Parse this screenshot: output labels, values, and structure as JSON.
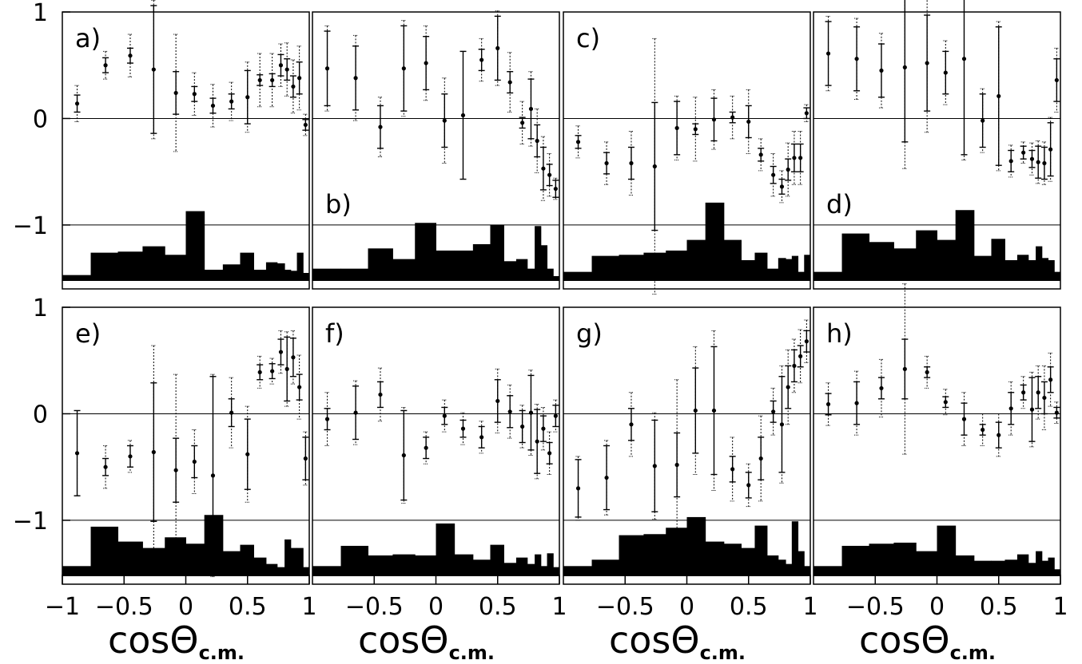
{
  "chart_data": [
    {
      "type": "errorbar",
      "label": "a)",
      "label_position": "upper left",
      "xlim": [
        -1,
        1
      ],
      "ylim": [
        -1.6,
        1.0
      ],
      "yticks": [
        1,
        0,
        {
          "value": -1,
          "label": "−1"
        }
      ],
      "hlines": [
        0,
        -1
      ],
      "x": [
        -0.88,
        -0.65,
        -0.45,
        -0.26,
        -0.08,
        0.07,
        0.22,
        0.37,
        0.5,
        0.6,
        0.7,
        0.77,
        0.82,
        0.87,
        0.92,
        0.97
      ],
      "values": [
        0.14,
        0.5,
        0.59,
        0.46,
        0.24,
        0.23,
        0.12,
        0.16,
        0.2,
        0.36,
        0.36,
        0.5,
        0.46,
        0.3,
        0.38,
        -0.06
      ],
      "stat_errors": [
        0.08,
        0.07,
        0.07,
        0.6,
        0.2,
        0.07,
        0.07,
        0.07,
        0.25,
        0.05,
        0.06,
        0.1,
        0.1,
        0.1,
        0.15,
        0.05
      ],
      "sys_errors": [
        0.17,
        0.13,
        0.2,
        0.65,
        0.55,
        0.2,
        0.2,
        0.18,
        0.33,
        0.25,
        0.25,
        0.2,
        0.25,
        0.25,
        0.3,
        0.1
      ],
      "bins": [
        -1,
        -0.77,
        -0.55,
        -0.35,
        -0.17,
        0,
        0.15,
        0.3,
        0.44,
        0.55,
        0.65,
        0.74,
        0.8,
        0.85,
        0.9,
        0.95,
        1
      ],
      "hist": [
        -1.47,
        -1.26,
        -1.25,
        -1.2,
        -1.28,
        -0.87,
        -1.42,
        -1.37,
        -1.26,
        -1.42,
        -1.35,
        -1.36,
        -1.42,
        -1.43,
        -1.26,
        -1.45
      ]
    },
    {
      "type": "errorbar",
      "label": "b)",
      "label_position": "lower left",
      "xlim": [
        -1,
        1
      ],
      "ylim": [
        -1.6,
        1.0
      ],
      "hlines": [
        0,
        -1
      ],
      "x": [
        -0.88,
        -0.65,
        -0.45,
        -0.26,
        -0.08,
        0.07,
        0.22,
        0.37,
        0.5,
        0.6,
        0.7,
        0.77,
        0.82,
        0.87,
        0.92,
        0.97
      ],
      "values": [
        0.47,
        0.38,
        -0.08,
        0.47,
        0.52,
        -0.02,
        0.03,
        0.55,
        0.66,
        0.34,
        -0.04,
        0.09,
        -0.21,
        -0.47,
        -0.53,
        -0.66
      ],
      "stat_errors": [
        0.35,
        0.3,
        0.2,
        0.4,
        0.25,
        0.25,
        0.6,
        0.1,
        0.3,
        0.1,
        0.05,
        0.28,
        0.15,
        0.2,
        0.1,
        0.08
      ],
      "sys_errors": [
        0.4,
        0.4,
        0.28,
        0.45,
        0.35,
        0.4,
        0.6,
        0.2,
        0.35,
        0.28,
        0.2,
        0.35,
        0.3,
        0.3,
        0.2,
        0.1
      ],
      "bins": [
        -1,
        -0.77,
        -0.55,
        -0.35,
        -0.17,
        0,
        0.15,
        0.3,
        0.44,
        0.55,
        0.65,
        0.74,
        0.8,
        0.85,
        0.9,
        0.95,
        1
      ],
      "hist": [
        -1.41,
        -1.41,
        -1.22,
        -1.32,
        -0.98,
        -1.24,
        -1.24,
        -1.18,
        -1.0,
        -1.34,
        -1.32,
        -1.41,
        -1.01,
        -1.19,
        -1.41,
        -1.48
      ]
    },
    {
      "type": "errorbar",
      "label": "c)",
      "label_position": "upper left",
      "xlim": [
        -1,
        1
      ],
      "ylim": [
        -1.6,
        1.0
      ],
      "hlines": [
        0,
        -1
      ],
      "x": [
        -0.88,
        -0.65,
        -0.45,
        -0.26,
        -0.08,
        0.07,
        0.22,
        0.37,
        0.5,
        0.6,
        0.7,
        0.77,
        0.82,
        0.87,
        0.92,
        0.97
      ],
      "values": [
        -0.22,
        -0.42,
        -0.42,
        -0.45,
        -0.09,
        -0.1,
        -0.01,
        0.01,
        -0.03,
        -0.34,
        -0.53,
        -0.64,
        -0.48,
        -0.37,
        -0.37,
        0.05
      ],
      "stat_errors": [
        0.06,
        0.1,
        0.15,
        0.6,
        0.25,
        0.05,
        0.2,
        0.05,
        0.15,
        0.06,
        0.08,
        0.07,
        0.1,
        0.13,
        0.13,
        0.05
      ],
      "sys_errors": [
        0.15,
        0.2,
        0.3,
        1.2,
        0.3,
        0.3,
        0.28,
        0.2,
        0.3,
        0.15,
        0.2,
        0.15,
        0.25,
        0.25,
        0.25,
        0.08
      ],
      "bins": [
        -1,
        -0.77,
        -0.55,
        -0.35,
        -0.17,
        0,
        0.15,
        0.3,
        0.44,
        0.55,
        0.65,
        0.74,
        0.8,
        0.85,
        0.9,
        0.95,
        1
      ],
      "hist": [
        -1.44,
        -1.29,
        -1.28,
        -1.26,
        -1.24,
        -1.14,
        -0.79,
        -1.14,
        -1.33,
        -1.26,
        -1.41,
        -1.31,
        -1.32,
        -1.29,
        -1.44,
        -1.28
      ]
    },
    {
      "type": "errorbar",
      "label": "d)",
      "label_position": "lower left",
      "xlim": [
        -1,
        1
      ],
      "ylim": [
        -1.6,
        1.0
      ],
      "hlines": [
        0,
        -1
      ],
      "x": [
        -0.88,
        -0.65,
        -0.45,
        -0.26,
        -0.08,
        0.07,
        0.22,
        0.37,
        0.5,
        0.6,
        0.7,
        0.77,
        0.82,
        0.87,
        0.92,
        0.97
      ],
      "values": [
        0.61,
        0.56,
        0.45,
        0.48,
        0.52,
        0.43,
        0.56,
        -0.02,
        0.21,
        -0.4,
        -0.32,
        -0.38,
        -0.41,
        -0.42,
        -0.29,
        0.36
      ],
      "stat_errors": [
        0.3,
        0.3,
        0.25,
        0.7,
        0.45,
        0.2,
        0.9,
        0.25,
        0.65,
        0.1,
        0.06,
        0.08,
        0.15,
        0.15,
        0.25,
        0.2
      ],
      "sys_errors": [
        0.35,
        0.38,
        0.35,
        0.95,
        0.65,
        0.3,
        0.95,
        0.3,
        0.7,
        0.15,
        0.1,
        0.15,
        0.2,
        0.2,
        0.3,
        0.3
      ],
      "bins": [
        -1,
        -0.77,
        -0.55,
        -0.35,
        -0.17,
        0,
        0.15,
        0.3,
        0.44,
        0.55,
        0.65,
        0.74,
        0.8,
        0.85,
        0.9,
        0.95,
        1
      ],
      "hist": [
        -1.44,
        -1.08,
        -1.16,
        -1.22,
        -1.05,
        -1.14,
        -0.86,
        -1.29,
        -1.13,
        -1.33,
        -1.28,
        -1.33,
        -1.2,
        -1.31,
        -1.33,
        -1.44
      ]
    },
    {
      "type": "errorbar",
      "label": "e)",
      "label_position": "upper left",
      "xlim": [
        -1,
        1
      ],
      "ylim": [
        -1.6,
        1.0
      ],
      "yticks": [
        1,
        0,
        {
          "value": -1,
          "label": "−1"
        }
      ],
      "hlines": [
        0,
        -1
      ],
      "xticks": [
        {
          "value": -1,
          "label": "−1"
        },
        {
          "value": -0.5,
          "label": "−0.5"
        },
        0,
        0.5,
        1
      ],
      "xlabel": "cosΘ",
      "xlabel_sub": "c.m.",
      "x": [
        -0.88,
        -0.65,
        -0.45,
        -0.26,
        -0.08,
        0.07,
        0.22,
        0.37,
        0.5,
        0.6,
        0.7,
        0.77,
        0.82,
        0.87,
        0.92,
        0.97
      ],
      "values": [
        -0.37,
        -0.5,
        -0.4,
        -0.36,
        -0.53,
        -0.45,
        -0.58,
        0.01,
        -0.38,
        0.39,
        0.4,
        0.58,
        0.42,
        0.53,
        0.25,
        -0.42
      ],
      "stat_errors": [
        0.4,
        0.08,
        0.1,
        0.65,
        0.3,
        0.15,
        0.93,
        0.13,
        0.33,
        0.07,
        0.07,
        0.12,
        0.3,
        0.18,
        0.12,
        0.2
      ],
      "sys_errors": [
        0.4,
        0.2,
        0.15,
        1.0,
        0.9,
        0.3,
        0.95,
        0.33,
        0.45,
        0.15,
        0.12,
        0.2,
        0.35,
        0.25,
        0.3,
        0.25
      ],
      "bins": [
        -1,
        -0.77,
        -0.55,
        -0.35,
        -0.17,
        0,
        0.15,
        0.3,
        0.44,
        0.55,
        0.65,
        0.74,
        0.8,
        0.85,
        0.9,
        0.95,
        1
      ],
      "hist": [
        -1.43,
        -1.06,
        -1.2,
        -1.26,
        -1.16,
        -1.22,
        -0.95,
        -1.29,
        -1.23,
        -1.35,
        -1.41,
        -1.44,
        -1.18,
        -1.26,
        -1.26,
        -1.44
      ]
    },
    {
      "type": "errorbar",
      "label": "f)",
      "label_position": "upper left",
      "xlim": [
        -1,
        1
      ],
      "ylim": [
        -1.6,
        1.0
      ],
      "hlines": [
        0,
        -1
      ],
      "xticks": [
        {
          "value": -0.5,
          "label": "−0.5"
        },
        0,
        0.5,
        1
      ],
      "xlabel": "cosΘ",
      "xlabel_sub": "c.m.",
      "x": [
        -0.88,
        -0.65,
        -0.45,
        -0.26,
        -0.08,
        0.07,
        0.22,
        0.37,
        0.5,
        0.6,
        0.7,
        0.77,
        0.82,
        0.87,
        0.92,
        0.97
      ],
      "values": [
        -0.05,
        0.01,
        0.18,
        -0.39,
        -0.32,
        -0.02,
        -0.14,
        -0.22,
        0.12,
        0.02,
        -0.12,
        0.01,
        -0.26,
        -0.14,
        -0.37,
        -0.02
      ],
      "stat_errors": [
        0.1,
        0.25,
        0.12,
        0.42,
        0.1,
        0.08,
        0.08,
        0.1,
        0.2,
        0.15,
        0.15,
        0.35,
        0.3,
        0.12,
        0.1,
        0.1
      ],
      "sys_errors": [
        0.25,
        0.3,
        0.25,
        0.45,
        0.15,
        0.15,
        0.15,
        0.15,
        0.3,
        0.25,
        0.2,
        0.4,
        0.35,
        0.2,
        0.2,
        0.15
      ],
      "bins": [
        -1,
        -0.77,
        -0.55,
        -0.35,
        -0.17,
        0,
        0.15,
        0.3,
        0.44,
        0.55,
        0.65,
        0.74,
        0.8,
        0.85,
        0.9,
        0.95,
        1
      ],
      "hist": [
        -1.43,
        -1.24,
        -1.33,
        -1.32,
        -1.33,
        -1.03,
        -1.32,
        -1.37,
        -1.23,
        -1.4,
        -1.35,
        -1.41,
        -1.32,
        -1.43,
        -1.31,
        -1.44
      ]
    },
    {
      "type": "errorbar",
      "label": "g)",
      "label_position": "upper left",
      "xlim": [
        -1,
        1
      ],
      "ylim": [
        -1.6,
        1.0
      ],
      "hlines": [
        0,
        -1
      ],
      "xticks": [
        {
          "value": -0.5,
          "label": "−0.5"
        },
        0,
        0.5,
        1
      ],
      "xlabel": "cosΘ",
      "xlabel_sub": "c.m.",
      "x": [
        -0.88,
        -0.65,
        -0.45,
        -0.26,
        -0.08,
        0.07,
        0.22,
        0.37,
        0.5,
        0.6,
        0.7,
        0.77,
        0.82,
        0.87,
        0.92,
        0.97
      ],
      "values": [
        -0.7,
        -0.6,
        -0.1,
        -0.49,
        -0.48,
        0.03,
        0.03,
        -0.52,
        -0.67,
        -0.42,
        0.02,
        -0.1,
        0.25,
        0.45,
        0.54,
        0.68
      ],
      "stat_errors": [
        0.27,
        0.3,
        0.15,
        0.43,
        0.3,
        0.4,
        0.6,
        0.12,
        0.12,
        0.2,
        0.1,
        0.45,
        0.2,
        0.15,
        0.1,
        0.1
      ],
      "sys_errors": [
        0.3,
        0.35,
        0.3,
        0.5,
        0.8,
        0.6,
        0.75,
        0.3,
        0.2,
        0.4,
        0.22,
        0.55,
        0.35,
        0.25,
        0.25,
        0.2
      ],
      "bins": [
        -1,
        -0.77,
        -0.55,
        -0.35,
        -0.17,
        0,
        0.15,
        0.3,
        0.44,
        0.55,
        0.65,
        0.74,
        0.8,
        0.85,
        0.9,
        0.95,
        1
      ],
      "hist": [
        -1.43,
        -1.37,
        -1.14,
        -1.13,
        -1.07,
        -0.97,
        -1.2,
        -1.22,
        -1.26,
        -1.05,
        -1.33,
        -1.37,
        -1.41,
        -1.01,
        -1.29,
        -1.43
      ]
    },
    {
      "type": "errorbar",
      "label": "h)",
      "label_position": "upper left",
      "xlim": [
        -1,
        1
      ],
      "ylim": [
        -1.6,
        1.0
      ],
      "hlines": [
        0,
        -1
      ],
      "xticks": [
        {
          "value": -0.5,
          "label": "−0.5"
        },
        0,
        0.5,
        1
      ],
      "xlabel": "cosΘ",
      "xlabel_sub": "c.m.",
      "x": [
        -0.88,
        -0.65,
        -0.45,
        -0.26,
        -0.08,
        0.07,
        0.22,
        0.37,
        0.5,
        0.6,
        0.7,
        0.77,
        0.82,
        0.87,
        0.92,
        0.97
      ],
      "values": [
        0.09,
        0.1,
        0.24,
        0.42,
        0.39,
        0.11,
        -0.05,
        -0.15,
        -0.2,
        0.05,
        0.2,
        0.04,
        0.2,
        0.15,
        0.32,
        0.01
      ],
      "stat_errors": [
        0.1,
        0.2,
        0.1,
        0.28,
        0.05,
        0.05,
        0.15,
        0.05,
        0.12,
        0.15,
        0.07,
        0.3,
        0.15,
        0.15,
        0.12,
        0.05
      ],
      "sys_errors": [
        0.2,
        0.3,
        0.27,
        0.8,
        0.15,
        0.12,
        0.25,
        0.15,
        0.2,
        0.25,
        0.15,
        0.35,
        0.25,
        0.3,
        0.25,
        0.1
      ],
      "bins": [
        -1,
        -0.77,
        -0.55,
        -0.35,
        -0.17,
        0,
        0.15,
        0.3,
        0.44,
        0.55,
        0.65,
        0.74,
        0.8,
        0.85,
        0.9,
        0.95,
        1
      ],
      "hist": [
        -1.43,
        -1.24,
        -1.22,
        -1.21,
        -1.29,
        -1.05,
        -1.33,
        -1.38,
        -1.38,
        -1.37,
        -1.32,
        -1.4,
        -1.29,
        -1.38,
        -1.35,
        -1.46
      ]
    }
  ]
}
